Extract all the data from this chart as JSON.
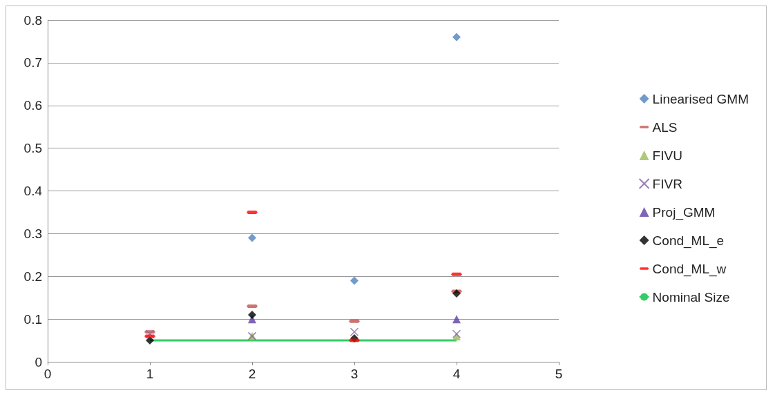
{
  "chart_data": {
    "type": "scatter",
    "xlim": [
      0,
      5
    ],
    "xticks": [
      0,
      1,
      2,
      3,
      4,
      5
    ],
    "ylim": [
      0,
      0.8
    ],
    "yticks": [
      0,
      0.1,
      0.2,
      0.3,
      0.4,
      0.5,
      0.6,
      0.7,
      0.8
    ],
    "grid": "y",
    "legend": "right",
    "series": [
      {
        "name": "Linearised GMM",
        "color": "#4f81bd",
        "marker": "diamond",
        "x": [
          2,
          3,
          4
        ],
        "values": [
          0.29,
          0.19,
          0.76
        ]
      },
      {
        "name": "ALS",
        "color": "#c0504d",
        "x": [
          1,
          2,
          3,
          4
        ],
        "values": [
          0.07,
          0.13,
          0.095,
          0.165
        ]
      },
      {
        "name": "FIVU",
        "color": "#9bbb59",
        "marker": "triangle",
        "x": [
          2,
          4
        ],
        "values": [
          0.06,
          0.06
        ]
      },
      {
        "name": "FIVR",
        "color": "#8064a2",
        "marker": "cross",
        "x": [
          1,
          2,
          3,
          4
        ],
        "values": [
          0.065,
          0.06,
          0.07,
          0.065
        ]
      },
      {
        "name": "Proj_GMM",
        "color": "#5f3fa6",
        "marker": "triangle",
        "x": [
          2,
          4
        ],
        "values": [
          0.1,
          0.1
        ]
      },
      {
        "name": "Cond_ML_e",
        "color": "#000000",
        "marker": "diamond",
        "x": [
          1,
          2,
          3,
          4
        ],
        "values": [
          0.05,
          0.11,
          0.055,
          0.16
        ]
      },
      {
        "name": "Cond_ML_w",
        "color": "#ff0000",
        "x": [
          1,
          2,
          3,
          4
        ],
        "values": [
          0.06,
          0.35,
          0.05,
          0.205
        ]
      },
      {
        "name": "Nominal Size",
        "type": "line",
        "color": "#33cc66",
        "marker": "none",
        "x": [
          1,
          4
        ],
        "values": [
          0.05,
          0.05
        ]
      }
    ]
  }
}
